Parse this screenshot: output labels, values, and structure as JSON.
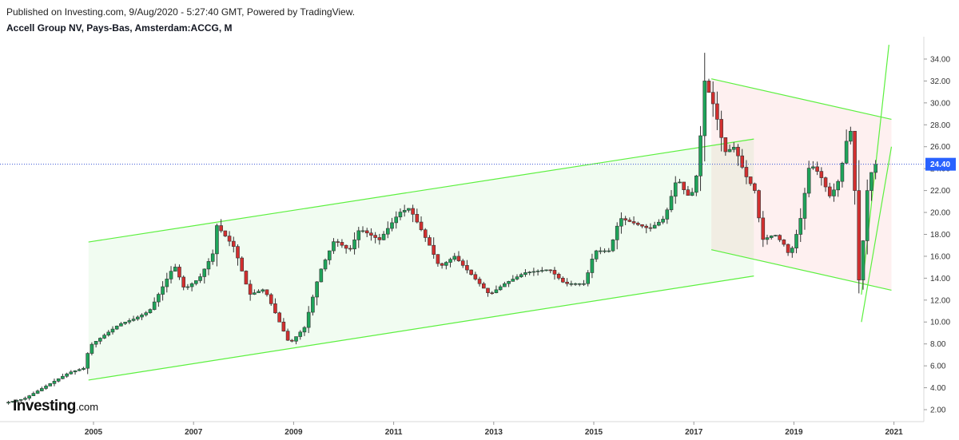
{
  "header": {
    "published": "Published on Investing.com, 9/Aug/2020 - 5:27:40 GMT, Powered by TradingView.",
    "symbol": "Accell Group NV, Pays-Bas, Amsterdam:ACCG, M"
  },
  "logo": {
    "main": "Investing",
    "suffix": ".com"
  },
  "colors": {
    "up": "#26a69a",
    "up_fill": "#1ea55a",
    "down": "#d32f2f",
    "channel_line": "#5cf03f",
    "channel_fill": "rgba(120,230,120,0.10)",
    "down_channel_fill": "rgba(245,140,140,0.13)",
    "price_line": "#3a55d6",
    "price_tag": "#2962ff",
    "wick": "#333333"
  },
  "chart_data": {
    "type": "candlestick",
    "interval": "M",
    "last_price": "24.40",
    "last_value": 24.4,
    "y_axis": {
      "min": 0.5,
      "max": 35.2,
      "ticks": [
        "2.00",
        "4.00",
        "6.00",
        "8.00",
        "10.00",
        "12.00",
        "14.00",
        "16.00",
        "18.00",
        "20.00",
        "22.00",
        "24.00",
        "26.00",
        "28.00",
        "30.00",
        "32.00",
        "34.00"
      ]
    },
    "x_axis": {
      "start": 2003.3,
      "end": 2021.6,
      "ticks": [
        "2005",
        "2007",
        "2009",
        "2011",
        "2013",
        "2015",
        "2017",
        "2019",
        "2021"
      ]
    },
    "key_points": [
      {
        "t": 2003.3,
        "v": 2.6
      },
      {
        "t": 2003.7,
        "v": 3.0
      },
      {
        "t": 2004.0,
        "v": 3.8
      },
      {
        "t": 2004.3,
        "v": 4.6
      },
      {
        "t": 2004.6,
        "v": 5.4
      },
      {
        "t": 2004.9,
        "v": 5.8
      },
      {
        "t": 2005.0,
        "v": 7.8
      },
      {
        "t": 2005.3,
        "v": 8.8
      },
      {
        "t": 2005.6,
        "v": 9.8
      },
      {
        "t": 2005.9,
        "v": 10.3
      },
      {
        "t": 2006.2,
        "v": 11.0
      },
      {
        "t": 2006.5,
        "v": 13.5
      },
      {
        "t": 2006.7,
        "v": 15.2
      },
      {
        "t": 2006.9,
        "v": 13.0
      },
      {
        "t": 2007.2,
        "v": 14.0
      },
      {
        "t": 2007.5,
        "v": 16.5
      },
      {
        "t": 2007.55,
        "v": 18.8
      },
      {
        "t": 2007.9,
        "v": 16.8
      },
      {
        "t": 2008.2,
        "v": 12.5
      },
      {
        "t": 2008.5,
        "v": 13.0
      },
      {
        "t": 2008.8,
        "v": 10.0
      },
      {
        "t": 2009.0,
        "v": 8.0
      },
      {
        "t": 2009.3,
        "v": 9.5
      },
      {
        "t": 2009.6,
        "v": 14.5
      },
      {
        "t": 2009.9,
        "v": 17.5
      },
      {
        "t": 2010.2,
        "v": 16.5
      },
      {
        "t": 2010.4,
        "v": 18.5
      },
      {
        "t": 2010.8,
        "v": 17.5
      },
      {
        "t": 2011.2,
        "v": 20.0
      },
      {
        "t": 2011.4,
        "v": 20.4
      },
      {
        "t": 2011.8,
        "v": 17.0
      },
      {
        "t": 2012.0,
        "v": 15.0
      },
      {
        "t": 2012.3,
        "v": 16.0
      },
      {
        "t": 2012.7,
        "v": 14.0
      },
      {
        "t": 2013.0,
        "v": 12.5
      },
      {
        "t": 2013.3,
        "v": 13.5
      },
      {
        "t": 2013.7,
        "v": 14.5
      },
      {
        "t": 2014.2,
        "v": 14.8
      },
      {
        "t": 2014.5,
        "v": 13.5
      },
      {
        "t": 2014.9,
        "v": 13.5
      },
      {
        "t": 2015.1,
        "v": 16.5
      },
      {
        "t": 2015.4,
        "v": 16.5
      },
      {
        "t": 2015.6,
        "v": 19.5
      },
      {
        "t": 2015.9,
        "v": 19.0
      },
      {
        "t": 2016.2,
        "v": 18.5
      },
      {
        "t": 2016.5,
        "v": 19.5
      },
      {
        "t": 2016.75,
        "v": 23.2
      },
      {
        "t": 2016.95,
        "v": 21.5
      },
      {
        "t": 2017.1,
        "v": 22.0
      },
      {
        "t": 2017.2,
        "v": 26.0
      },
      {
        "t": 2017.3,
        "v": 32.0
      },
      {
        "t": 2017.5,
        "v": 29.5
      },
      {
        "t": 2017.7,
        "v": 25.5
      },
      {
        "t": 2017.9,
        "v": 26.0
      },
      {
        "t": 2018.1,
        "v": 23.5
      },
      {
        "t": 2018.3,
        "v": 22.0
      },
      {
        "t": 2018.45,
        "v": 17.5
      },
      {
        "t": 2018.7,
        "v": 18.0
      },
      {
        "t": 2018.9,
        "v": 17.0
      },
      {
        "t": 2019.0,
        "v": 16.0
      },
      {
        "t": 2019.2,
        "v": 19.0
      },
      {
        "t": 2019.4,
        "v": 24.5
      },
      {
        "t": 2019.6,
        "v": 23.5
      },
      {
        "t": 2019.8,
        "v": 21.5
      },
      {
        "t": 2019.95,
        "v": 22.5
      },
      {
        "t": 2020.1,
        "v": 25.5
      },
      {
        "t": 2020.2,
        "v": 28.5
      },
      {
        "t": 2020.3,
        "v": 22.0
      },
      {
        "t": 2020.35,
        "v": 12.5
      },
      {
        "t": 2020.45,
        "v": 16.5
      },
      {
        "t": 2020.55,
        "v": 22.0
      },
      {
        "t": 2020.62,
        "v": 23.5
      },
      {
        "t": 2020.7,
        "v": 24.4
      }
    ],
    "trendlines": [
      {
        "id": "upper-up-channel",
        "t1": 2004.9,
        "v1": 17.3,
        "t2": 2018.2,
        "v2": 26.7,
        "color": "channel_line"
      },
      {
        "id": "lower-up-channel",
        "t1": 2004.9,
        "v1": 4.7,
        "t2": 2018.2,
        "v2": 14.2,
        "color": "channel_line"
      },
      {
        "id": "upper-down-channel",
        "t1": 2017.35,
        "v1": 32.2,
        "t2": 2020.95,
        "v2": 28.5,
        "color": "channel_line"
      },
      {
        "id": "lower-down-channel",
        "t1": 2017.35,
        "v1": 16.6,
        "t2": 2020.95,
        "v2": 12.9,
        "color": "channel_line"
      },
      {
        "id": "steep-upper",
        "t1": 2020.35,
        "v1": 12.5,
        "t2": 2020.9,
        "v2": 35.3,
        "color": "channel_line"
      },
      {
        "id": "steep-lower",
        "t1": 2020.35,
        "v1": 10.0,
        "t2": 2020.95,
        "v2": 26.0,
        "color": "channel_line"
      }
    ],
    "shaded_regions": [
      {
        "id": "up-channel-fill",
        "t1": 2004.9,
        "t2": 2018.2,
        "top1": 17.3,
        "top2": 26.7,
        "bot1": 4.7,
        "bot2": 14.2,
        "color": "channel_fill"
      },
      {
        "id": "down-channel-fill",
        "t1": 2017.35,
        "t2": 2020.95,
        "top1": 32.2,
        "top2": 28.5,
        "bot1": 16.6,
        "bot2": 12.9,
        "color": "down_channel_fill"
      }
    ]
  }
}
